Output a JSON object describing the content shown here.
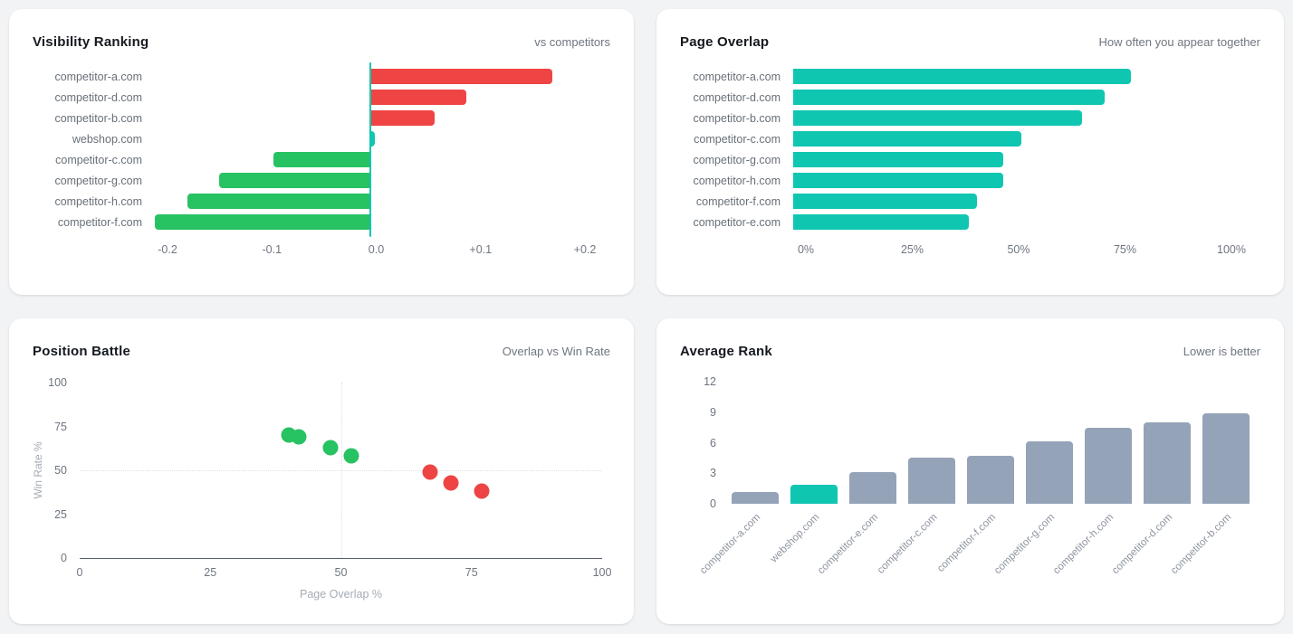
{
  "page_background": "#f2f3f5",
  "chart_data": [
    {
      "id": "visibility-ranking",
      "type": "bar",
      "orientation": "horizontal",
      "title": "Visibility Ranking",
      "subtitle": "vs competitors",
      "categories": [
        "competitor-a.com",
        "competitor-d.com",
        "competitor-b.com",
        "webshop.com",
        "competitor-c.com",
        "competitor-g.com",
        "competitor-h.com",
        "competitor-f.com"
      ],
      "values": [
        0.17,
        0.09,
        0.06,
        0.005,
        -0.09,
        -0.14,
        -0.17,
        -0.2
      ],
      "bar_colors": [
        "#ef4444",
        "#ef4444",
        "#ef4444",
        "#0fc6b1",
        "#27c262",
        "#27c262",
        "#27c262",
        "#27c262"
      ],
      "xlim": [
        -0.2,
        0.2
      ],
      "x_tick_values": [
        -0.2,
        -0.1,
        0,
        0.1,
        0.2
      ],
      "x_tick_labels": [
        "-0.2",
        "-0.1",
        "0.0",
        "+0.1",
        "+0.2"
      ],
      "zero_line_color": "#0fc6b1",
      "grid": "off",
      "legend": "none"
    },
    {
      "id": "page-overlap",
      "type": "bar",
      "orientation": "horizontal",
      "title": "Page Overlap",
      "subtitle": "How often you appear together",
      "categories": [
        "competitor-a.com",
        "competitor-d.com",
        "competitor-b.com",
        "competitor-c.com",
        "competitor-g.com",
        "competitor-h.com",
        "competitor-f.com",
        "competitor-e.com"
      ],
      "values": [
        77,
        71,
        66,
        52,
        48,
        48,
        42,
        40
      ],
      "bar_color": "#0fc6b1",
      "xlim": [
        0,
        100
      ],
      "x_tick_values": [
        0,
        25,
        50,
        75,
        100
      ],
      "x_tick_labels": [
        "0%",
        "25%",
        "50%",
        "75%",
        "100%"
      ],
      "grid": "off",
      "legend": "none"
    },
    {
      "id": "position-battle",
      "type": "scatter",
      "title": "Position Battle",
      "subtitle": "Overlap vs Win Rate",
      "xlabel": "Page Overlap %",
      "ylabel": "Win Rate %",
      "xlim": [
        0,
        100
      ],
      "ylim": [
        0,
        100
      ],
      "x_tick_values": [
        0,
        25,
        50,
        75,
        100
      ],
      "x_tick_labels": [
        "0",
        "25",
        "50",
        "75",
        "100"
      ],
      "y_tick_values": [
        0,
        25,
        50,
        75,
        100
      ],
      "y_tick_labels": [
        "0",
        "25",
        "50",
        "75",
        "100"
      ],
      "gridlines": {
        "x": 50,
        "y": 50
      },
      "series": [
        {
          "name": "green",
          "color": "#27c262",
          "points": [
            [
              40,
              70
            ],
            [
              42,
              69
            ],
            [
              48,
              63
            ],
            [
              52,
              58
            ]
          ]
        },
        {
          "name": "red",
          "color": "#ef4444",
          "points": [
            [
              67,
              49
            ],
            [
              71,
              43
            ],
            [
              77,
              38
            ]
          ]
        }
      ],
      "legend": "none"
    },
    {
      "id": "average-rank",
      "type": "bar",
      "orientation": "vertical",
      "title": "Average Rank",
      "subtitle": "Lower is better",
      "categories": [
        "competitor-a.com",
        "webshop.com",
        "competitor-e.com",
        "competitor-c.com",
        "competitor-f.com",
        "competitor-g.com",
        "competitor-h.com",
        "competitor-d.com",
        "competitor-b.com"
      ],
      "values": [
        1.2,
        1.9,
        3.1,
        4.5,
        4.7,
        6.1,
        7.5,
        8.0,
        8.9
      ],
      "bar_colors": [
        "#94a3b8",
        "#0fc6b1",
        "#94a3b8",
        "#94a3b8",
        "#94a3b8",
        "#94a3b8",
        "#94a3b8",
        "#94a3b8",
        "#94a3b8"
      ],
      "ylim": [
        0,
        12
      ],
      "y_tick_values": [
        0,
        3,
        6,
        9,
        12
      ],
      "y_tick_labels": [
        "0",
        "3",
        "6",
        "9",
        "12"
      ],
      "grid": "off",
      "legend": "none"
    }
  ]
}
